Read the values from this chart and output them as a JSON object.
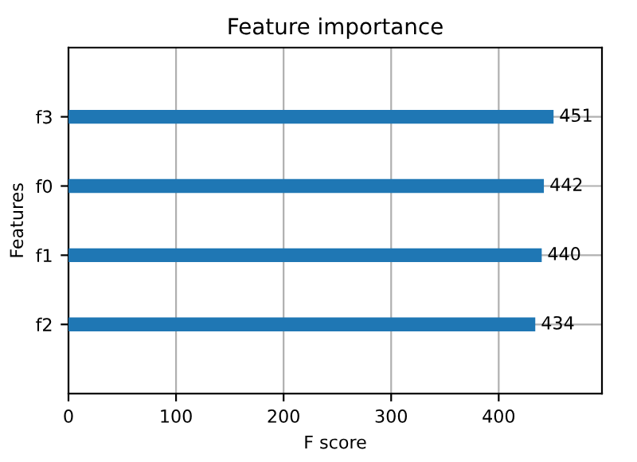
{
  "chart_data": {
    "type": "bar",
    "orientation": "horizontal",
    "title": "Feature importance",
    "xlabel": "F score",
    "ylabel": "Features",
    "categories": [
      "f3",
      "f0",
      "f1",
      "f2"
    ],
    "values": [
      451,
      442,
      440,
      434
    ],
    "color": "#1f77b4",
    "xlim": [
      0,
      496
    ],
    "xticks": [
      0,
      100,
      200,
      300,
      400
    ],
    "grid": true,
    "data_labels": true
  }
}
